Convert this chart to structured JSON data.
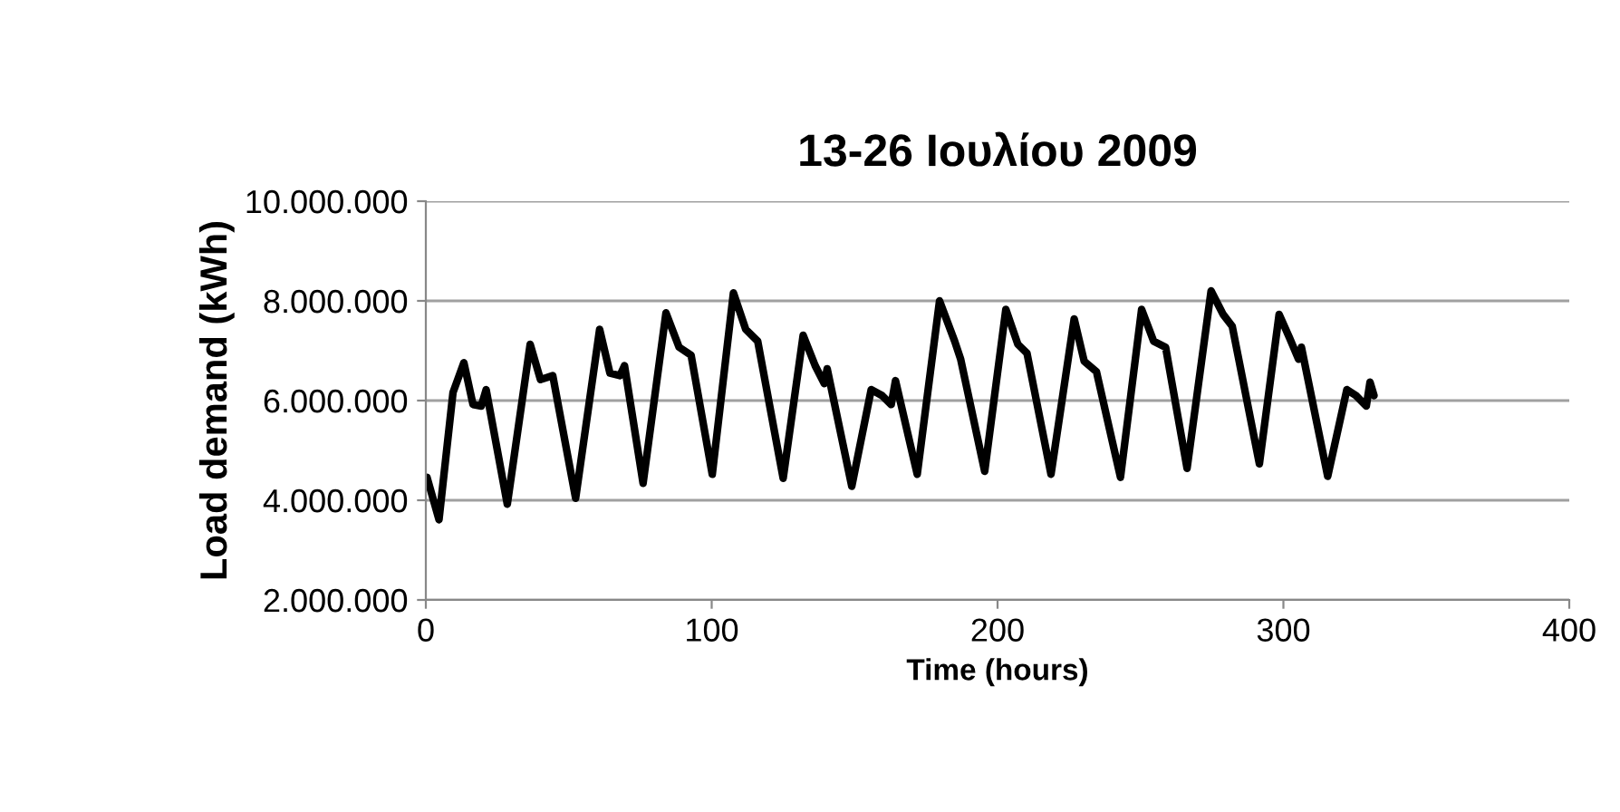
{
  "chart_data": {
    "type": "line",
    "title": "13-26 Ιουλίου 2009",
    "xlabel": "Time (hours)",
    "ylabel": "Load demand (kWh)",
    "series": [
      {
        "color": "#000000",
        "x": [
          0.4,
          4.6,
          9.5,
          13.3,
          16.5,
          19.4,
          21.1,
          28.5,
          36.5,
          40.1,
          44.4,
          52.4,
          60.8,
          64.4,
          67.9,
          69.5,
          76,
          84,
          88.6,
          92.8,
          100.2,
          107.6,
          111.9,
          116.1,
          125,
          132,
          136.2,
          139.4,
          140.4,
          149,
          155.8,
          159.6,
          162.8,
          164.3,
          171.9,
          179.7,
          185,
          187.1,
          195.5,
          202.9,
          207.1,
          210.3,
          218.7,
          226.8,
          230.3,
          234.6,
          243,
          250.4,
          254.6,
          258.8,
          266.3,
          274.7,
          278.9,
          282.1,
          291.6,
          298.5,
          302.2,
          305.3,
          306.3,
          315.5,
          322.2,
          325.4,
          329,
          330.3,
          331.7
        ],
        "values": [
          4460000,
          3610000,
          6160000,
          6760000,
          5920000,
          5890000,
          6220000,
          3920000,
          7130000,
          6420000,
          6500000,
          4040000,
          7430000,
          6550000,
          6500000,
          6700000,
          4340000,
          7760000,
          7070000,
          6910000,
          4520000,
          8160000,
          7430000,
          7190000,
          4440000,
          7310000,
          6700000,
          6340000,
          6640000,
          4280000,
          6220000,
          6100000,
          5920000,
          6400000,
          4520000,
          8000000,
          7190000,
          6830000,
          4580000,
          7830000,
          7130000,
          6950000,
          4520000,
          7640000,
          6790000,
          6580000,
          4460000,
          7830000,
          7190000,
          7070000,
          4640000,
          8200000,
          7730000,
          7490000,
          4730000,
          7730000,
          7250000,
          6830000,
          7070000,
          4480000,
          6220000,
          6100000,
          5890000,
          6370000,
          6100000
        ]
      }
    ],
    "xlim": [
      0,
      400
    ],
    "xticks": [
      0,
      100,
      200,
      300,
      400
    ],
    "ylim": [
      2000000,
      10000000
    ],
    "yticks": [
      {
        "value": 2000000,
        "label": "2.000.000"
      },
      {
        "value": 4000000,
        "label": "4.000.000"
      },
      {
        "value": 6000000,
        "label": "6.000.000"
      },
      {
        "value": 8000000,
        "label": "8.000.000"
      },
      {
        "value": 10000000,
        "label": "10.000.000"
      }
    ],
    "grid": "y",
    "legend": false,
    "marker": "none",
    "line_style": "solid"
  }
}
